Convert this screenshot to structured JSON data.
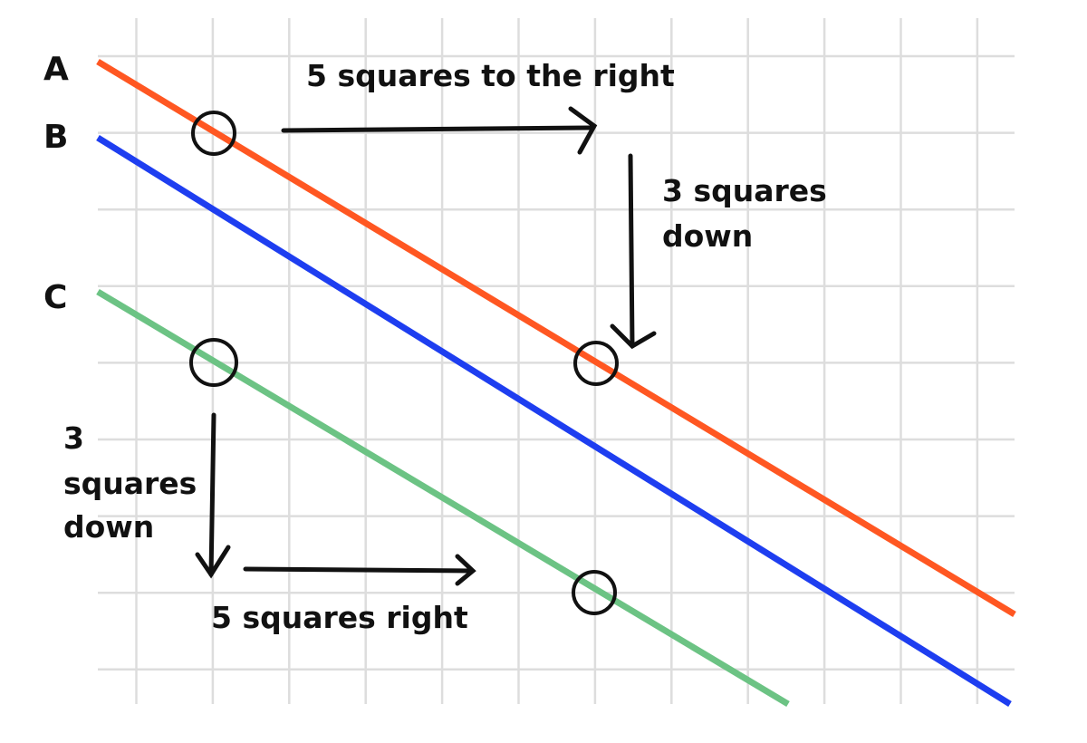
{
  "lines": [
    {
      "label": "A",
      "color": "#ff5722"
    },
    {
      "label": "B",
      "color": "#1e3ef0"
    },
    {
      "label": "C",
      "color": "#6cc384"
    }
  ],
  "annotations": {
    "top_right": "5 squares to the right",
    "top_down_1": "3 squares",
    "top_down_2": "down",
    "left_down_1": "3",
    "left_down_2": "squares",
    "left_down_3": "down",
    "bottom_right": "5 squares right"
  },
  "colors": {
    "grid": "#dddddd",
    "ink": "#111111"
  }
}
